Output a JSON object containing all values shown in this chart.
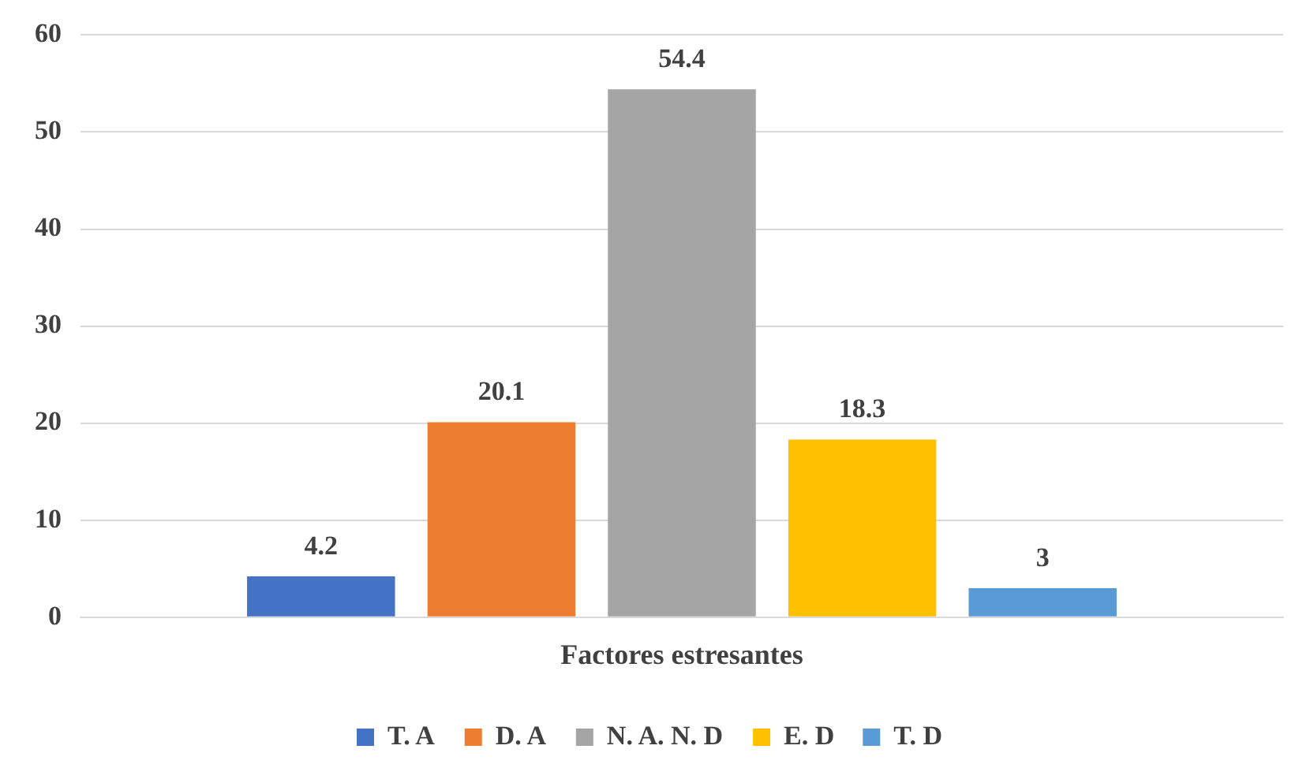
{
  "chart_data": {
    "type": "bar",
    "categories": [
      "Factores estresantes"
    ],
    "series": [
      {
        "name": "T. A",
        "color": "#4472c4",
        "values": [
          4.2
        ]
      },
      {
        "name": "D. A",
        "color": "#ed7d31",
        "values": [
          20.1
        ]
      },
      {
        "name": "N. A. N. D",
        "color": "#a5a5a5",
        "values": [
          54.4
        ]
      },
      {
        "name": "E. D",
        "color": "#ffc000",
        "values": [
          18.3
        ]
      },
      {
        "name": "T. D",
        "color": "#5b9bd5",
        "values": [
          3
        ]
      }
    ],
    "ylim": [
      0,
      60
    ],
    "yticks": [
      0,
      10,
      20,
      30,
      40,
      50,
      60
    ],
    "grid": "y",
    "legend": "bottom",
    "data_labels": true
  }
}
